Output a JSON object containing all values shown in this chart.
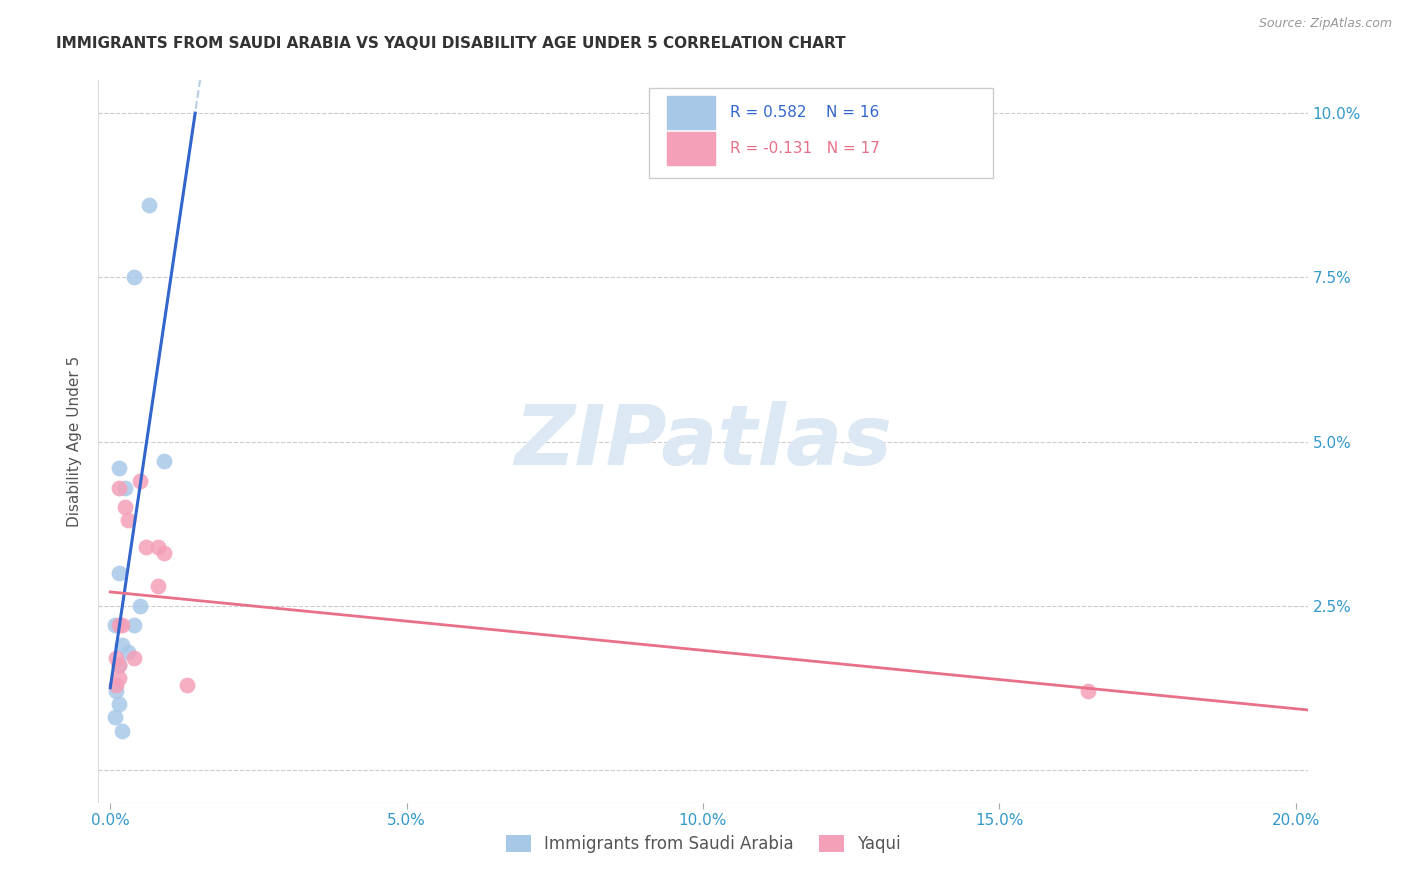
{
  "title": "IMMIGRANTS FROM SAUDI ARABIA VS YAQUI DISABILITY AGE UNDER 5 CORRELATION CHART",
  "source": "Source: ZipAtlas.com",
  "ylabel_label": "Disability Age Under 5",
  "legend_label1": "Immigrants from Saudi Arabia",
  "legend_label2": "Yaqui",
  "R1": 0.582,
  "N1": 16,
  "R2": -0.131,
  "N2": 17,
  "xlim": [
    -0.002,
    0.202
  ],
  "ylim": [
    -0.005,
    0.105
  ],
  "xticks": [
    0.0,
    0.05,
    0.1,
    0.15,
    0.2
  ],
  "xtick_labels": [
    "0.0%",
    "5.0%",
    "10.0%",
    "15.0%",
    "20.0%"
  ],
  "yticks": [
    0.0,
    0.025,
    0.05,
    0.075,
    0.1
  ],
  "ytick_labels_right": [
    "",
    "2.5%",
    "5.0%",
    "7.5%",
    "10.0%"
  ],
  "blue_scatter_x": [
    0.0065,
    0.004,
    0.009,
    0.0015,
    0.0025,
    0.0015,
    0.0008,
    0.002,
    0.003,
    0.0015,
    0.001,
    0.0015,
    0.0008,
    0.002,
    0.004,
    0.005
  ],
  "blue_scatter_y": [
    0.086,
    0.075,
    0.047,
    0.046,
    0.043,
    0.03,
    0.022,
    0.019,
    0.018,
    0.016,
    0.012,
    0.01,
    0.008,
    0.006,
    0.022,
    0.025
  ],
  "pink_scatter_x": [
    0.0015,
    0.0025,
    0.003,
    0.005,
    0.006,
    0.008,
    0.008,
    0.009,
    0.013,
    0.002,
    0.001,
    0.0015,
    0.004,
    0.0015,
    0.001,
    0.0015,
    0.165
  ],
  "pink_scatter_y": [
    0.043,
    0.04,
    0.038,
    0.044,
    0.034,
    0.034,
    0.028,
    0.033,
    0.013,
    0.022,
    0.017,
    0.016,
    0.017,
    0.022,
    0.013,
    0.014,
    0.012
  ],
  "blue_color": "#a8c8e8",
  "blue_line_color": "#3366cc",
  "pink_color": "#f4a0b8",
  "pink_line_color": "#e87088",
  "dash_color": "#b0c8e0",
  "watermark_text": "ZIPatlas",
  "watermark_color": "#dce8f4",
  "background_color": "#ffffff",
  "grid_color": "#cccccc"
}
